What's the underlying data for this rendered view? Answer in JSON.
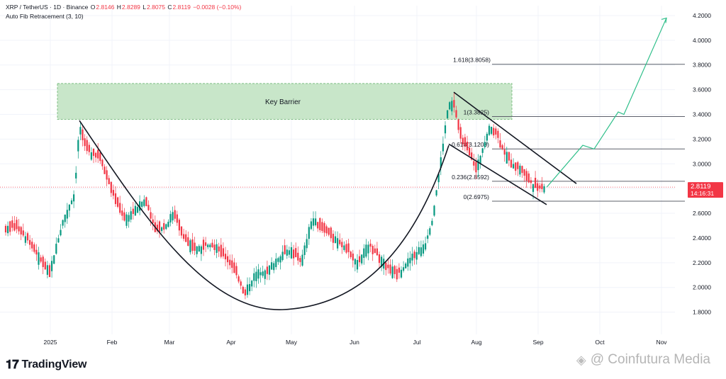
{
  "header": {
    "symbol": "XRP / TetherUS · 1D · Binance",
    "o_label": "O",
    "o": "2.8146",
    "h_label": "H",
    "h": "2.8289",
    "l_label": "L",
    "l": "2.8075",
    "c_label": "C",
    "c": "2.8119",
    "change": "−0.0028 (−0.10%)",
    "indicator": "Auto Fib Retracement (3, 10)"
  },
  "colors": {
    "up": "#089981",
    "down": "#f23645",
    "barrier_fill": "#c8e6c9",
    "projection": "#2fbf8a",
    "price_tag": "#f23645"
  },
  "brand": {
    "logo_icon": "tradingview-logo-icon",
    "name": "TradingView"
  },
  "watermark": {
    "icon": "coinfutura-logo-icon",
    "text": "@ Coinfutura Media"
  },
  "chart_data": {
    "type": "candlestick",
    "y_axis": {
      "min": 1.62,
      "max": 4.28,
      "ticks": [
        "4.2000",
        "4.0000",
        "3.8000",
        "3.6000",
        "3.4000",
        "3.2000",
        "3.0000",
        "2.8000",
        "2.6000",
        "2.4000",
        "2.2000",
        "2.0000",
        "1.8000"
      ]
    },
    "x_axis": {
      "labels": [
        "2025",
        "Feb",
        "Mar",
        "Apr",
        "May",
        "Jun",
        "Jul",
        "Aug",
        "Sep",
        "Oct",
        "Nov"
      ]
    },
    "last_price": {
      "value": "2.8119",
      "countdown": "14:16:31"
    },
    "key_barrier": {
      "label": "Key Barrier",
      "low": 3.36,
      "high": 3.65
    },
    "fib_levels": [
      {
        "label": "1.618(3.8058)",
        "value": 3.8058
      },
      {
        "label": "1(3.3825)",
        "value": 3.3825
      },
      {
        "label": "0.618(3.1208)",
        "value": 3.1208
      },
      {
        "label": "0.236(2.8592)",
        "value": 2.8592
      },
      {
        "label": "0(2.6975)",
        "value": 2.6975
      }
    ]
  }
}
